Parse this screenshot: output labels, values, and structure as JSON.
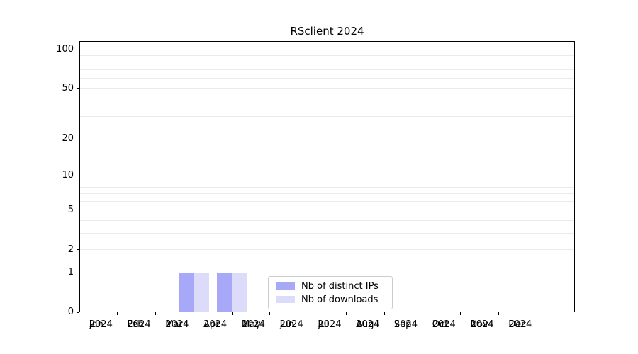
{
  "chart_data": {
    "type": "bar",
    "title": "RSclient 2024",
    "x_ticks": [
      {
        "line1": "Jan",
        "line2": "2024"
      },
      {
        "line1": "Feb",
        "line2": "2024"
      },
      {
        "line1": "Mar",
        "line2": "2024"
      },
      {
        "line1": "Apr",
        "line2": "2024"
      },
      {
        "line1": "May",
        "line2": "2024"
      },
      {
        "line1": "Jun",
        "line2": "2024"
      },
      {
        "line1": "Jul",
        "line2": "2024"
      },
      {
        "line1": "Aug",
        "line2": "2024"
      },
      {
        "line1": "Sep",
        "line2": "2024"
      },
      {
        "line1": "Oct",
        "line2": "2024"
      },
      {
        "line1": "Nov",
        "line2": "2024"
      },
      {
        "line1": "Dec",
        "line2": "2024"
      }
    ],
    "series": [
      {
        "name": "Nb of distinct IPs",
        "color": "#a8a8f8",
        "values": [
          0,
          0,
          1,
          1,
          0,
          0,
          0,
          0,
          0,
          0,
          0,
          0
        ]
      },
      {
        "name": "Nb of downloads",
        "color": "#dcdcfa",
        "values": [
          0,
          0,
          1,
          1,
          0,
          0,
          0,
          0,
          0,
          0,
          0,
          0
        ]
      }
    ],
    "y_axis": {
      "scale": "log1p",
      "tick_values": [
        0,
        1,
        2,
        5,
        10,
        20,
        50,
        100
      ],
      "tick_labels": [
        "0",
        "1",
        "2",
        "5",
        "10",
        "20",
        "50",
        "100"
      ],
      "gridlines_major": [
        1,
        10,
        100
      ],
      "gridlines_minor": [
        2,
        3,
        4,
        5,
        6,
        7,
        8,
        9,
        20,
        30,
        40,
        50,
        60,
        70,
        80,
        90
      ],
      "ylim": [
        0,
        116
      ]
    },
    "legend": {
      "position": "lower center",
      "entries": [
        "Nb of distinct IPs",
        "Nb of downloads"
      ]
    },
    "colors": {
      "background": "#ffffff",
      "axis": "#000000",
      "text": "#000000",
      "grid_major": "#c9c9c9",
      "grid_minor": "#ebebeb",
      "legend_border": "#cccccc"
    }
  }
}
